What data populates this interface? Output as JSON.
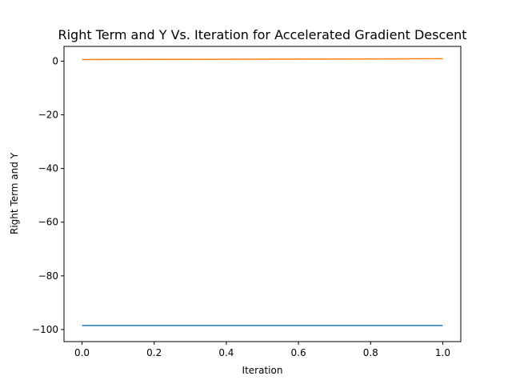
{
  "chart_data": {
    "type": "line",
    "title": "Right Term and Y Vs. Iteration for Accelerated Gradient Descent",
    "xlabel": "Iteration",
    "ylabel": "Right Term and Y",
    "xlim": [
      -0.05,
      1.05
    ],
    "ylim": [
      -104.5,
      5.5
    ],
    "grid": false,
    "x": [
      0,
      1
    ],
    "x_ticks": [
      0.0,
      0.2,
      0.4,
      0.6,
      0.8,
      1.0
    ],
    "x_tick_labels": [
      "0.0",
      "0.2",
      "0.4",
      "0.6",
      "0.8",
      "1.0"
    ],
    "y_ticks": [
      0,
      -20,
      -40,
      -60,
      -80,
      -100
    ],
    "y_tick_labels": [
      "0",
      "−20",
      "−40",
      "−60",
      "−80",
      "−100"
    ],
    "series": [
      {
        "values": [
          -98.5,
          -98.5
        ],
        "color": "#1f77b4"
      },
      {
        "values": [
          0.6,
          0.9
        ],
        "color": "#ff7f0e"
      }
    ]
  }
}
